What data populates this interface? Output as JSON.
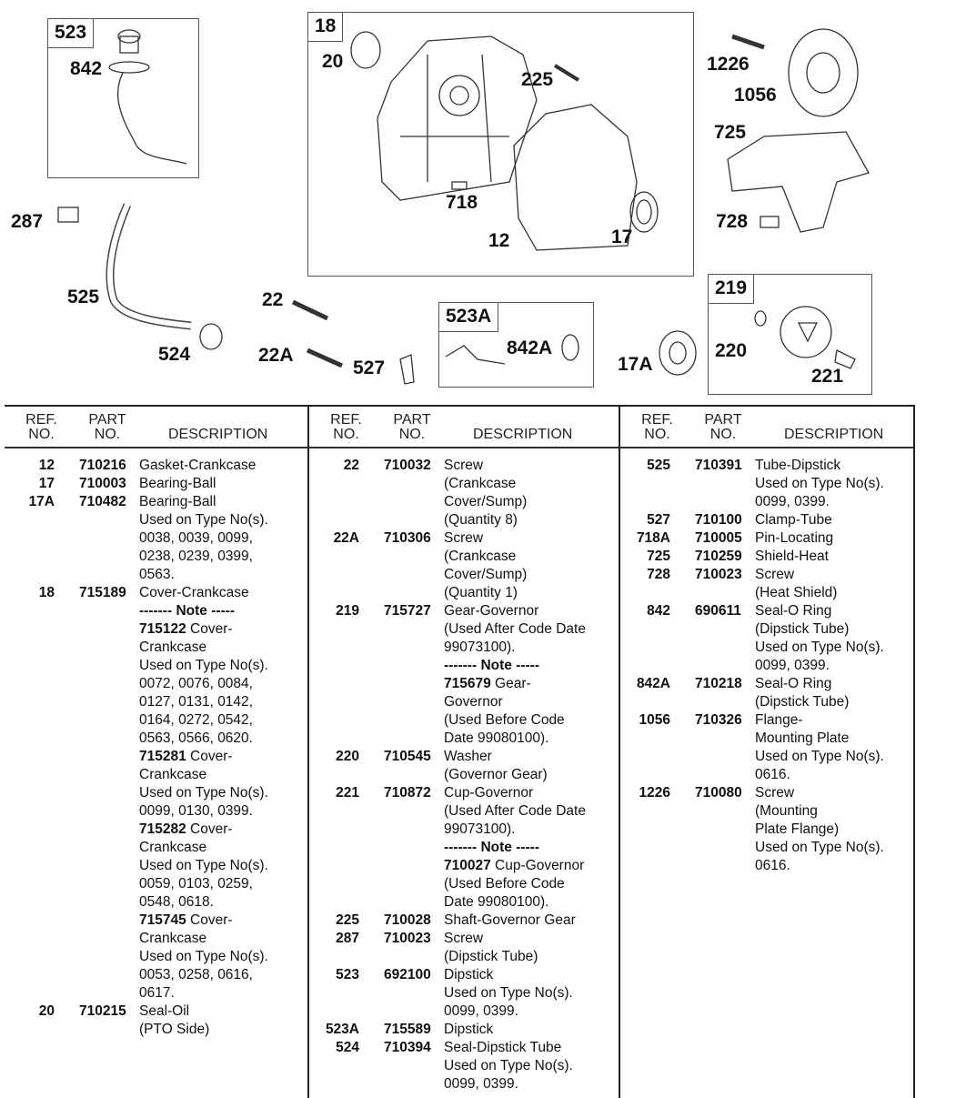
{
  "diagram": {
    "boxes": [
      {
        "id": "523",
        "label": "523"
      },
      {
        "id": "18",
        "label": "18"
      },
      {
        "id": "523A",
        "label": "523A"
      },
      {
        "id": "219",
        "label": "219"
      }
    ],
    "callouts": [
      "842",
      "20",
      "225",
      "718",
      "12",
      "17",
      "1226",
      "1056",
      "725",
      "728",
      "287",
      "525",
      "524",
      "22",
      "22A",
      "527",
      "842A",
      "17A",
      "220",
      "221"
    ]
  },
  "table": {
    "headers": {
      "ref": [
        "REF.",
        "NO."
      ],
      "part": [
        "PART",
        "NO."
      ],
      "description": "DESCRIPTION"
    },
    "columns": [
      [
        {
          "ref": "12",
          "part": "710216",
          "lines": [
            "Gasket-Crankcase"
          ]
        },
        {
          "ref": "17",
          "part": "710003",
          "lines": [
            "Bearing-Ball"
          ]
        },
        {
          "ref": "17A",
          "part": "710482",
          "lines": [
            "Bearing-Ball",
            "Used on Type No(s).",
            "0038, 0039, 0099,",
            "0238, 0239, 0399,",
            "0563."
          ]
        },
        {
          "ref": "18",
          "part": "715189",
          "lines": [
            "Cover-Crankcase",
            "------- Note -----",
            "715122 Cover-",
            "Crankcase",
            "Used on Type No(s).",
            "0072, 0076, 0084,",
            "0127, 0131, 0142,",
            "0164, 0272, 0542,",
            "0563, 0566, 0620.",
            "715281 Cover-",
            "Crankcase",
            "Used on Type No(s).",
            "0099, 0130, 0399.",
            "715282 Cover-",
            "Crankcase",
            "Used on Type No(s).",
            "0059, 0103, 0259,",
            "0548, 0618.",
            "715745 Cover-",
            "Crankcase",
            "Used on Type No(s).",
            "0053, 0258, 0616,",
            "0617."
          ]
        },
        {
          "ref": "20",
          "part": "710215",
          "lines": [
            "Seal-Oil",
            "(PTO Side)"
          ]
        }
      ],
      [
        {
          "ref": "22",
          "part": "710032",
          "lines": [
            "Screw",
            "(Crankcase",
            "Cover/Sump)",
            "(Quantity 8)"
          ]
        },
        {
          "ref": "22A",
          "part": "710306",
          "lines": [
            "Screw",
            "(Crankcase",
            "Cover/Sump)",
            "(Quantity 1)"
          ]
        },
        {
          "ref": "219",
          "part": "715727",
          "lines": [
            "Gear-Governor",
            "(Used After Code Date",
            "99073100).",
            "------- Note -----",
            "715679 Gear-",
            "Governor",
            "(Used Before Code",
            "Date 99080100)."
          ]
        },
        {
          "ref": "220",
          "part": "710545",
          "lines": [
            "Washer",
            "(Governor Gear)"
          ]
        },
        {
          "ref": "221",
          "part": "710872",
          "lines": [
            "Cup-Governor",
            "(Used After Code Date",
            "99073100).",
            "------- Note -----",
            "710027 Cup-Governor",
            "(Used Before Code",
            "Date 99080100)."
          ]
        },
        {
          "ref": "225",
          "part": "710028",
          "lines": [
            "Shaft-Governor Gear"
          ]
        },
        {
          "ref": "287",
          "part": "710023",
          "lines": [
            "Screw",
            "(Dipstick Tube)"
          ]
        },
        {
          "ref": "523",
          "part": "692100",
          "lines": [
            "Dipstick",
            "Used on Type No(s).",
            "0099, 0399."
          ]
        },
        {
          "ref": "523A",
          "part": "715589",
          "lines": [
            "Dipstick"
          ]
        },
        {
          "ref": "524",
          "part": "710394",
          "lines": [
            "Seal-Dipstick Tube",
            "Used on Type No(s).",
            "0099, 0399."
          ]
        }
      ],
      [
        {
          "ref": "525",
          "part": "710391",
          "lines": [
            "Tube-Dipstick",
            "Used on Type No(s).",
            "0099, 0399."
          ]
        },
        {
          "ref": "527",
          "part": "710100",
          "lines": [
            "Clamp-Tube"
          ]
        },
        {
          "ref": "718A",
          "part": "710005",
          "lines": [
            "Pin-Locating"
          ]
        },
        {
          "ref": "725",
          "part": "710259",
          "lines": [
            "Shield-Heat"
          ]
        },
        {
          "ref": "728",
          "part": "710023",
          "lines": [
            "Screw",
            "(Heat Shield)"
          ]
        },
        {
          "ref": "842",
          "part": "690611",
          "lines": [
            "Seal-O Ring",
            "(Dipstick Tube)",
            "Used on Type No(s).",
            "0099, 0399."
          ]
        },
        {
          "ref": "842A",
          "part": "710218",
          "lines": [
            "Seal-O Ring",
            "(Dipstick Tube)"
          ]
        },
        {
          "ref": "1056",
          "part": "710326",
          "lines": [
            "Flange-",
            "Mounting Plate",
            "Used on Type No(s).",
            "0616."
          ]
        },
        {
          "ref": "1226",
          "part": "710080",
          "lines": [
            "Screw",
            "(Mounting",
            "Plate Flange)",
            "Used on Type No(s).",
            "0616."
          ]
        }
      ]
    ]
  }
}
